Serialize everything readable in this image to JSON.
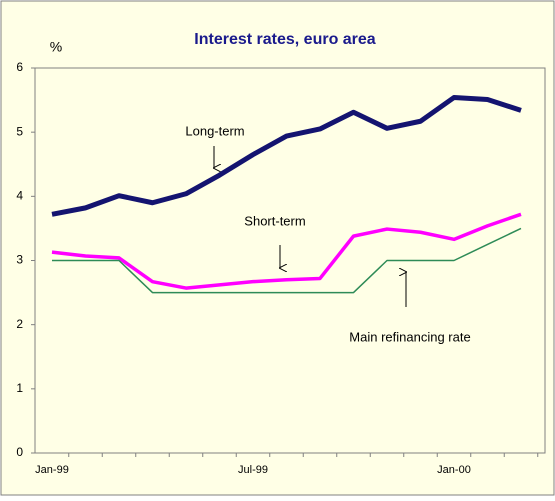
{
  "chart_data": {
    "type": "line",
    "title": "Interest rates, euro area",
    "y_label": "%",
    "categories": [
      "Jan-99",
      null,
      null,
      null,
      null,
      null,
      "Jul-99",
      null,
      null,
      null,
      null,
      null,
      "Jan-00",
      null,
      null
    ],
    "series": [
      {
        "name": "Long-term",
        "color": "#141470",
        "values": [
          3.72,
          3.82,
          4.01,
          3.9,
          4.04,
          4.33,
          4.65,
          4.94,
          5.05,
          5.31,
          5.06,
          5.17,
          5.54,
          5.51,
          5.34
        ]
      },
      {
        "name": "Short-term",
        "color": "#ff00ff",
        "values": [
          3.13,
          3.07,
          3.04,
          2.67,
          2.57,
          2.62,
          2.67,
          2.7,
          2.72,
          3.38,
          3.49,
          3.44,
          3.33,
          3.54,
          3.72
        ]
      },
      {
        "name": "Main refinancing rate",
        "color": "#2e8b57",
        "values": [
          3.0,
          3.0,
          3.0,
          2.5,
          2.5,
          2.5,
          2.5,
          2.5,
          2.5,
          2.5,
          3.0,
          3.0,
          3.0,
          3.25,
          3.5
        ]
      }
    ],
    "ylim": [
      0,
      6
    ],
    "yticks": [
      0,
      1,
      2,
      3,
      4,
      5,
      6
    ]
  }
}
